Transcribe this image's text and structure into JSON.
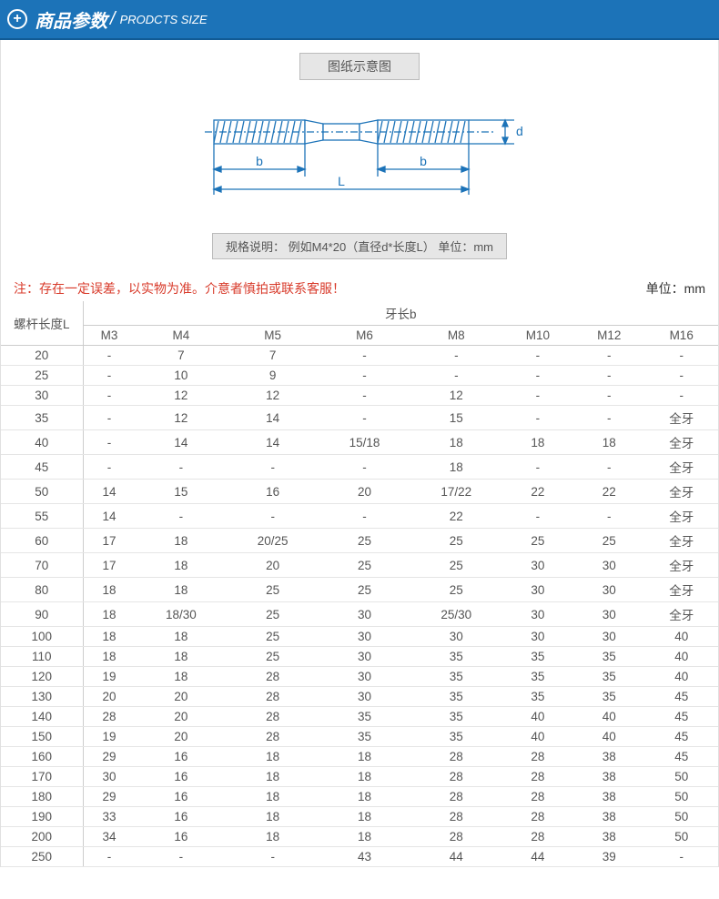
{
  "header": {
    "title_cn": "商品参数",
    "title_en": "PRODCTS SIZE"
  },
  "diagram": {
    "label": "图纸示意图",
    "stroke": "#1c73b8",
    "fill_thread": "#d6e4f2",
    "b_label": "b",
    "L_label": "L",
    "d_label": "d"
  },
  "spec_note": "规格说明：  例如M4*20（直径d*长度L）   单位：mm",
  "note_red": "注：存在一定误差，以实物为准。介意者慎拍或联系客服！",
  "unit_label": "单位：mm",
  "table": {
    "left_header": "螺杆长度L",
    "group_header": "牙长b",
    "columns": [
      "M3",
      "M4",
      "M5",
      "M6",
      "M8",
      "M10",
      "M12",
      "M16"
    ],
    "rows": [
      {
        "L": "20",
        "v": [
          "-",
          "7",
          "7",
          "-",
          "-",
          "-",
          "-",
          "-"
        ]
      },
      {
        "L": "25",
        "v": [
          "-",
          "10",
          "9",
          "-",
          "-",
          "-",
          "-",
          "-"
        ]
      },
      {
        "L": "30",
        "v": [
          "-",
          "12",
          "12",
          "-",
          "12",
          "-",
          "-",
          "-"
        ]
      },
      {
        "L": "35",
        "v": [
          "-",
          "12",
          "14",
          "-",
          "15",
          "-",
          "-",
          "全牙"
        ]
      },
      {
        "L": "40",
        "v": [
          "-",
          "14",
          "14",
          "15/18",
          "18",
          "18",
          "18",
          "全牙"
        ]
      },
      {
        "L": "45",
        "v": [
          "-",
          "-",
          "-",
          "-",
          "18",
          "-",
          "-",
          "全牙"
        ]
      },
      {
        "L": "50",
        "v": [
          "14",
          "15",
          "16",
          "20",
          "17/22",
          "22",
          "22",
          "全牙"
        ]
      },
      {
        "L": "55",
        "v": [
          "14",
          "-",
          "-",
          "-",
          "22",
          "-",
          "-",
          "全牙"
        ]
      },
      {
        "L": "60",
        "v": [
          "17",
          "18",
          "20/25",
          "25",
          "25",
          "25",
          "25",
          "全牙"
        ]
      },
      {
        "L": "70",
        "v": [
          "17",
          "18",
          "20",
          "25",
          "25",
          "30",
          "30",
          "全牙"
        ]
      },
      {
        "L": "80",
        "v": [
          "18",
          "18",
          "25",
          "25",
          "25",
          "30",
          "30",
          "全牙"
        ]
      },
      {
        "L": "90",
        "v": [
          "18",
          "18/30",
          "25",
          "30",
          "25/30",
          "30",
          "30",
          "全牙"
        ]
      },
      {
        "L": "100",
        "v": [
          "18",
          "18",
          "25",
          "30",
          "30",
          "30",
          "30",
          "40"
        ]
      },
      {
        "L": "110",
        "v": [
          "18",
          "18",
          "25",
          "30",
          "35",
          "35",
          "35",
          "40"
        ]
      },
      {
        "L": "120",
        "v": [
          "19",
          "18",
          "28",
          "30",
          "35",
          "35",
          "35",
          "40"
        ]
      },
      {
        "L": "130",
        "v": [
          "20",
          "20",
          "28",
          "30",
          "35",
          "35",
          "35",
          "45"
        ]
      },
      {
        "L": "140",
        "v": [
          "28",
          "20",
          "28",
          "35",
          "35",
          "40",
          "40",
          "45"
        ]
      },
      {
        "L": "150",
        "v": [
          "19",
          "20",
          "28",
          "35",
          "35",
          "40",
          "40",
          "45"
        ]
      },
      {
        "L": "160",
        "v": [
          "29",
          "16",
          "18",
          "18",
          "28",
          "28",
          "38",
          "45"
        ]
      },
      {
        "L": "170",
        "v": [
          "30",
          "16",
          "18",
          "18",
          "28",
          "28",
          "38",
          "50"
        ]
      },
      {
        "L": "180",
        "v": [
          "29",
          "16",
          "18",
          "18",
          "28",
          "28",
          "38",
          "50"
        ]
      },
      {
        "L": "190",
        "v": [
          "33",
          "16",
          "18",
          "18",
          "28",
          "28",
          "38",
          "50"
        ]
      },
      {
        "L": "200",
        "v": [
          "34",
          "16",
          "18",
          "18",
          "28",
          "28",
          "38",
          "50"
        ]
      },
      {
        "L": "250",
        "v": [
          "-",
          "-",
          "-",
          "43",
          "44",
          "44",
          "39",
          "-"
        ]
      }
    ]
  }
}
